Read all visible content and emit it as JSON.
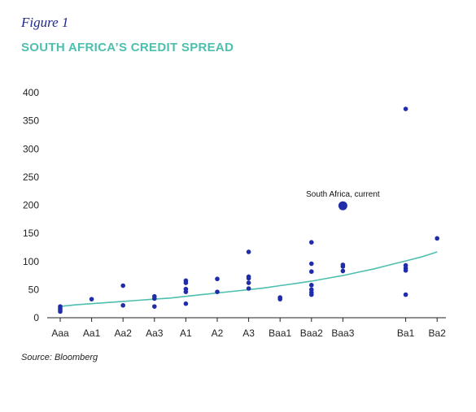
{
  "figure": {
    "label": "Figure 1",
    "title": "SOUTH AFRICA’S CREDIT SPREAD",
    "source": "Source: Bloomberg"
  },
  "colors": {
    "title": "#4dbfae",
    "label": "#1f2a8a",
    "points": "#1f2da8",
    "line": "#4dbfae",
    "axis": "#222222"
  },
  "chart_data": {
    "type": "scatter",
    "categories": [
      "Aaa",
      "Aa1",
      "Aa2",
      "Aa3",
      "A1",
      "A2",
      "A3",
      "Baa1",
      "Baa2",
      "Baa3",
      "Ba1",
      "Ba2"
    ],
    "category_positions": [
      0,
      1,
      2,
      3,
      4,
      5,
      6,
      7,
      8,
      9,
      11,
      12
    ],
    "ylim": [
      0,
      400
    ],
    "yticks": [
      0,
      50,
      100,
      150,
      200,
      250,
      300,
      350,
      400
    ],
    "series": [
      {
        "type": "scatter",
        "points": [
          {
            "x": "Aaa",
            "y": 20
          },
          {
            "x": "Aaa",
            "y": 17
          },
          {
            "x": "Aaa",
            "y": 14
          },
          {
            "x": "Aaa",
            "y": 11
          },
          {
            "x": "Aa1",
            "y": 33
          },
          {
            "x": "Aa2",
            "y": 57
          },
          {
            "x": "Aa2",
            "y": 22
          },
          {
            "x": "Aa3",
            "y": 38
          },
          {
            "x": "Aa3",
            "y": 34
          },
          {
            "x": "Aa3",
            "y": 20
          },
          {
            "x": "A1",
            "y": 66
          },
          {
            "x": "A1",
            "y": 62
          },
          {
            "x": "A1",
            "y": 51
          },
          {
            "x": "A1",
            "y": 46
          },
          {
            "x": "A1",
            "y": 25
          },
          {
            "x": "A2",
            "y": 69
          },
          {
            "x": "A2",
            "y": 46
          },
          {
            "x": "A3",
            "y": 117
          },
          {
            "x": "A3",
            "y": 73
          },
          {
            "x": "A3",
            "y": 70
          },
          {
            "x": "A3",
            "y": 62
          },
          {
            "x": "A3",
            "y": 52
          },
          {
            "x": "Baa1",
            "y": 36
          },
          {
            "x": "Baa1",
            "y": 33
          },
          {
            "x": "Baa2",
            "y": 134
          },
          {
            "x": "Baa2",
            "y": 96
          },
          {
            "x": "Baa2",
            "y": 82
          },
          {
            "x": "Baa2",
            "y": 58
          },
          {
            "x": "Baa2",
            "y": 50
          },
          {
            "x": "Baa2",
            "y": 45
          },
          {
            "x": "Baa2",
            "y": 41
          },
          {
            "x": "Baa3",
            "y": 94
          },
          {
            "x": "Baa3",
            "y": 91
          },
          {
            "x": "Baa3",
            "y": 83
          },
          {
            "x": "Ba1",
            "y": 371
          },
          {
            "x": "Ba1",
            "y": 93
          },
          {
            "x": "Ba1",
            "y": 88
          },
          {
            "x": "Ba1",
            "y": 84
          },
          {
            "x": "Ba1",
            "y": 41
          },
          {
            "x": "Ba2",
            "y": 141
          }
        ]
      },
      {
        "type": "line",
        "points": [
          {
            "x": 0,
            "y": 20
          },
          {
            "x": 0.5,
            "y": 23
          },
          {
            "x": 1,
            "y": 25
          },
          {
            "x": 1.5,
            "y": 27
          },
          {
            "x": 2,
            "y": 29
          },
          {
            "x": 2.5,
            "y": 31
          },
          {
            "x": 3,
            "y": 33
          },
          {
            "x": 3.5,
            "y": 35
          },
          {
            "x": 4,
            "y": 38
          },
          {
            "x": 4.5,
            "y": 41
          },
          {
            "x": 5,
            "y": 44
          },
          {
            "x": 5.5,
            "y": 47
          },
          {
            "x": 6,
            "y": 50
          },
          {
            "x": 6.5,
            "y": 53
          },
          {
            "x": 7,
            "y": 57
          },
          {
            "x": 7.5,
            "y": 61
          },
          {
            "x": 8,
            "y": 65
          },
          {
            "x": 8.5,
            "y": 70
          },
          {
            "x": 9,
            "y": 75
          },
          {
            "x": 9.5,
            "y": 81
          },
          {
            "x": 10,
            "y": 87
          },
          {
            "x": 10.5,
            "y": 94
          },
          {
            "x": 11,
            "y": 101
          },
          {
            "x": 11.5,
            "y": 108
          },
          {
            "x": 12,
            "y": 117
          }
        ]
      }
    ],
    "annotations": [
      {
        "text": "South Africa, current",
        "x": "Baa3",
        "y": 199
      }
    ]
  }
}
